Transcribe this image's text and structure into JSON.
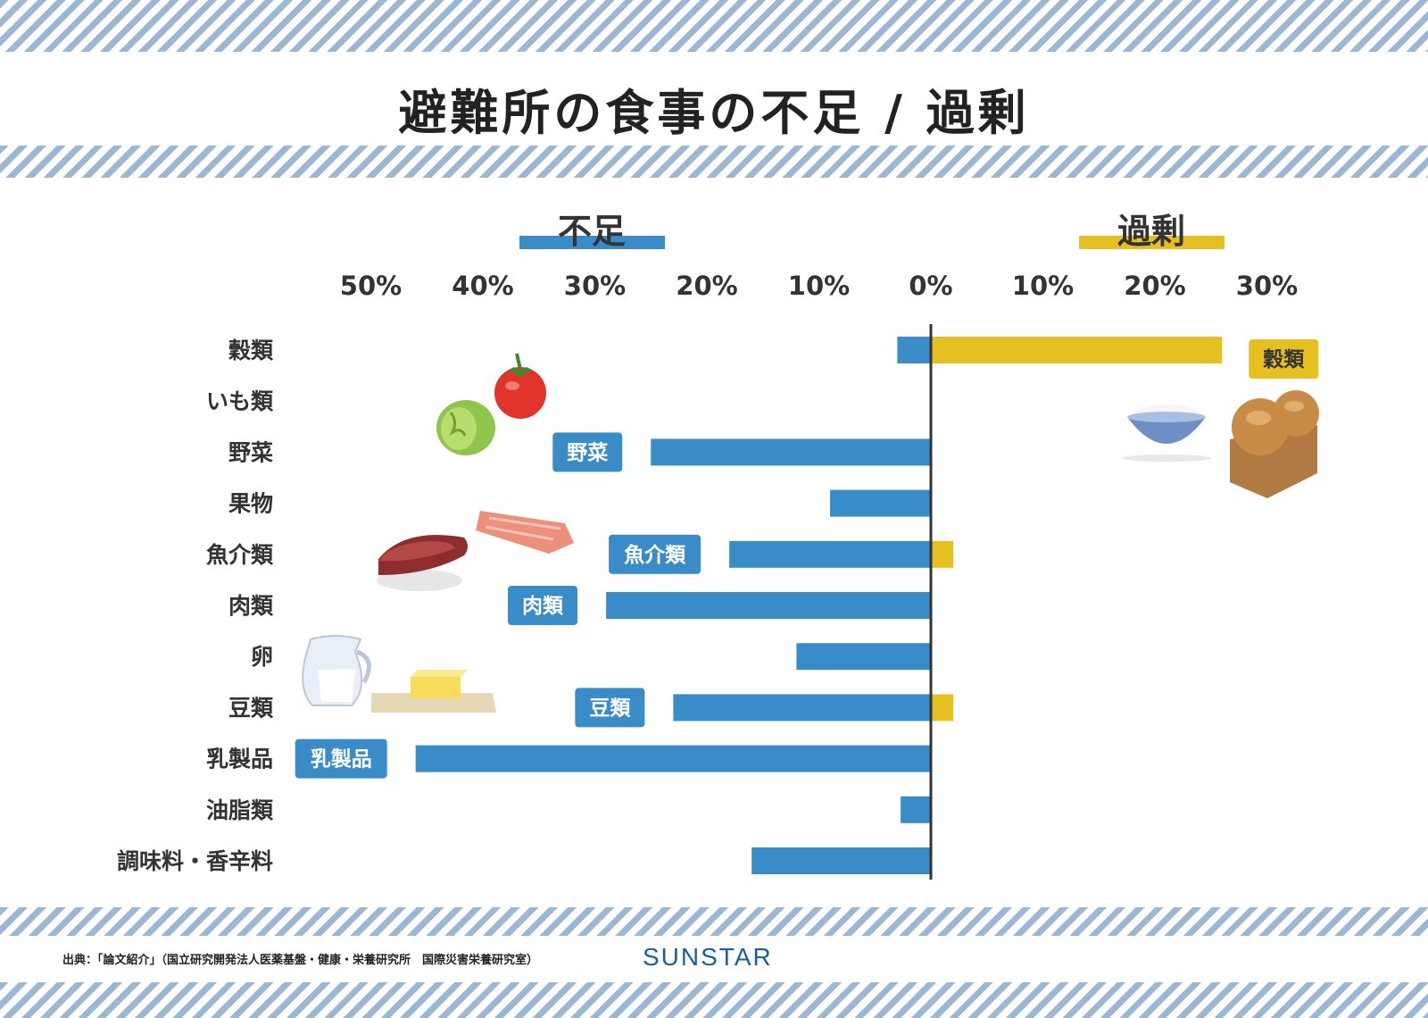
{
  "title": "避難所の食事の不足 / 過剰",
  "chart_data": {
    "type": "bar",
    "orientation": "horizontal-diverging",
    "group_labels": {
      "shortage": "不足",
      "excess": "過剰"
    },
    "x_ticks_shortage": [
      "50%",
      "40%",
      "30%",
      "20%",
      "10%",
      "0%"
    ],
    "x_ticks_excess": [
      "10%",
      "20%",
      "30%"
    ],
    "xlim_shortage": [
      0,
      50
    ],
    "xlim_excess": [
      0,
      30
    ],
    "colors": {
      "shortage": "#3a8cc9",
      "excess": "#e6c020"
    },
    "categories": [
      "穀類",
      "いも類",
      "野菜",
      "果物",
      "魚介類",
      "肉類",
      "卵",
      "豆類",
      "乳製品",
      "油脂類",
      "調味料・香辛料"
    ],
    "series": [
      {
        "name": "不足",
        "values": [
          3,
          0,
          25,
          9,
          18,
          29,
          12,
          23,
          46,
          2.7,
          16
        ]
      },
      {
        "name": "過剰",
        "values": [
          26,
          0,
          0,
          0,
          2,
          0,
          0,
          2,
          0,
          0,
          0
        ]
      }
    ],
    "tags": [
      {
        "text": "穀類",
        "category": "穀類",
        "side": "excess"
      },
      {
        "text": "野菜",
        "category": "野菜",
        "side": "shortage"
      },
      {
        "text": "魚介類",
        "category": "魚介類",
        "side": "shortage"
      },
      {
        "text": "肉類",
        "category": "肉類",
        "side": "shortage"
      },
      {
        "text": "豆類",
        "category": "豆類",
        "side": "shortage"
      },
      {
        "text": "乳製品",
        "category": "乳製品",
        "side": "shortage"
      }
    ],
    "illustrations": [
      "lettuce-icon",
      "tomato-icon",
      "rice-bowl-icon",
      "bread-icon",
      "salmon-icon",
      "steak-icon",
      "milk-pitcher-icon",
      "butter-icon"
    ]
  },
  "footer": {
    "source": "出典：「論文紹介」（国立研究開発法人医薬基盤・健康・栄養研究所　国際災害栄養研究室）",
    "brand": "SUNSTAR"
  }
}
